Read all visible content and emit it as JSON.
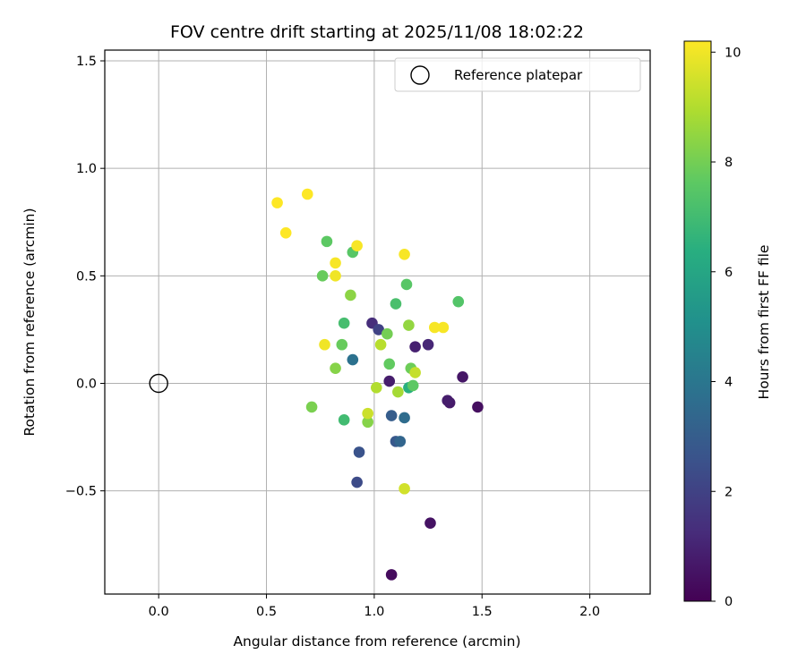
{
  "chart_data": {
    "type": "scatter",
    "title": "FOV centre drift starting at 2025/11/08 18:02:22",
    "xlabel": "Angular distance from reference (arcmin)",
    "ylabel": "Rotation from reference (arcmin)",
    "xlim": [
      -0.25,
      2.28
    ],
    "ylim": [
      -0.98,
      1.55
    ],
    "xticks": [
      0.0,
      0.5,
      1.0,
      1.5,
      2.0
    ],
    "xtick_labels": [
      "0.0",
      "0.5",
      "1.0",
      "1.5",
      "2.0"
    ],
    "yticks": [
      -0.5,
      0.0,
      0.5,
      1.0,
      1.5
    ],
    "ytick_labels": [
      "−0.5",
      "0.0",
      "0.5",
      "1.0",
      "1.5"
    ],
    "grid": true,
    "legend": {
      "position": "top-right",
      "entries": [
        "Reference platepar"
      ]
    },
    "reference_point": {
      "name": "Reference platepar",
      "x": 0.0,
      "y": 0.0
    },
    "colorbar": {
      "label": "Hours from first FF file",
      "colormap": "viridis",
      "range": [
        0,
        10.2
      ],
      "ticks": [
        0,
        2,
        4,
        6,
        8,
        10
      ],
      "tick_labels": [
        "0",
        "2",
        "4",
        "6",
        "8",
        "10"
      ]
    },
    "points": [
      {
        "x": 1.08,
        "y": -0.89,
        "hours": 0.3
      },
      {
        "x": 1.26,
        "y": -0.65,
        "hours": 0.5
      },
      {
        "x": 1.48,
        "y": -0.11,
        "hours": 0.4
      },
      {
        "x": 1.41,
        "y": 0.03,
        "hours": 0.6
      },
      {
        "x": 1.35,
        "y": -0.09,
        "hours": 0.7
      },
      {
        "x": 1.34,
        "y": -0.08,
        "hours": 0.8
      },
      {
        "x": 1.19,
        "y": 0.17,
        "hours": 0.9
      },
      {
        "x": 1.25,
        "y": 0.18,
        "hours": 1.1
      },
      {
        "x": 1.07,
        "y": 0.01,
        "hours": 0.8
      },
      {
        "x": 0.99,
        "y": 0.28,
        "hours": 1.3
      },
      {
        "x": 1.02,
        "y": 0.25,
        "hours": 2.0
      },
      {
        "x": 0.92,
        "y": -0.46,
        "hours": 2.3
      },
      {
        "x": 0.93,
        "y": -0.32,
        "hours": 2.6
      },
      {
        "x": 1.1,
        "y": -0.27,
        "hours": 2.8
      },
      {
        "x": 1.08,
        "y": -0.15,
        "hours": 3.0
      },
      {
        "x": 1.12,
        "y": -0.27,
        "hours": 3.3
      },
      {
        "x": 1.14,
        "y": -0.16,
        "hours": 3.6
      },
      {
        "x": 0.9,
        "y": 0.11,
        "hours": 3.8
      },
      {
        "x": 1.16,
        "y": -0.02,
        "hours": 6.4
      },
      {
        "x": 0.86,
        "y": -0.17,
        "hours": 7.0
      },
      {
        "x": 0.86,
        "y": 0.28,
        "hours": 7.1
      },
      {
        "x": 1.1,
        "y": 0.37,
        "hours": 7.2
      },
      {
        "x": 1.39,
        "y": 0.38,
        "hours": 7.4
      },
      {
        "x": 1.15,
        "y": 0.46,
        "hours": 7.5
      },
      {
        "x": 0.9,
        "y": 0.61,
        "hours": 7.5
      },
      {
        "x": 0.78,
        "y": 0.66,
        "hours": 7.6
      },
      {
        "x": 1.18,
        "y": -0.01,
        "hours": 7.6
      },
      {
        "x": 1.07,
        "y": 0.09,
        "hours": 7.7
      },
      {
        "x": 0.76,
        "y": 0.5,
        "hours": 7.8
      },
      {
        "x": 0.85,
        "y": 0.18,
        "hours": 7.8
      },
      {
        "x": 1.17,
        "y": 0.07,
        "hours": 7.9
      },
      {
        "x": 1.06,
        "y": 0.23,
        "hours": 8.0
      },
      {
        "x": 0.71,
        "y": -0.11,
        "hours": 8.1
      },
      {
        "x": 0.97,
        "y": -0.18,
        "hours": 8.3
      },
      {
        "x": 0.82,
        "y": 0.07,
        "hours": 8.3
      },
      {
        "x": 0.89,
        "y": 0.41,
        "hours": 8.4
      },
      {
        "x": 1.16,
        "y": 0.27,
        "hours": 8.5
      },
      {
        "x": 1.11,
        "y": -0.04,
        "hours": 8.8
      },
      {
        "x": 1.01,
        "y": -0.02,
        "hours": 9.0
      },
      {
        "x": 1.03,
        "y": 0.18,
        "hours": 9.1
      },
      {
        "x": 1.19,
        "y": 0.05,
        "hours": 9.3
      },
      {
        "x": 0.97,
        "y": -0.14,
        "hours": 9.4
      },
      {
        "x": 1.14,
        "y": -0.49,
        "hours": 9.5
      },
      {
        "x": 0.77,
        "y": 0.18,
        "hours": 10.0
      },
      {
        "x": 0.82,
        "y": 0.5,
        "hours": 10.0
      },
      {
        "x": 0.82,
        "y": 0.56,
        "hours": 10.1
      },
      {
        "x": 0.92,
        "y": 0.64,
        "hours": 10.1
      },
      {
        "x": 1.14,
        "y": 0.6,
        "hours": 10.1
      },
      {
        "x": 1.28,
        "y": 0.26,
        "hours": 10.1
      },
      {
        "x": 1.32,
        "y": 0.26,
        "hours": 10.1
      },
      {
        "x": 0.55,
        "y": 0.84,
        "hours": 10.2
      },
      {
        "x": 0.59,
        "y": 0.7,
        "hours": 10.2
      },
      {
        "x": 0.69,
        "y": 0.88,
        "hours": 10.2
      }
    ]
  }
}
